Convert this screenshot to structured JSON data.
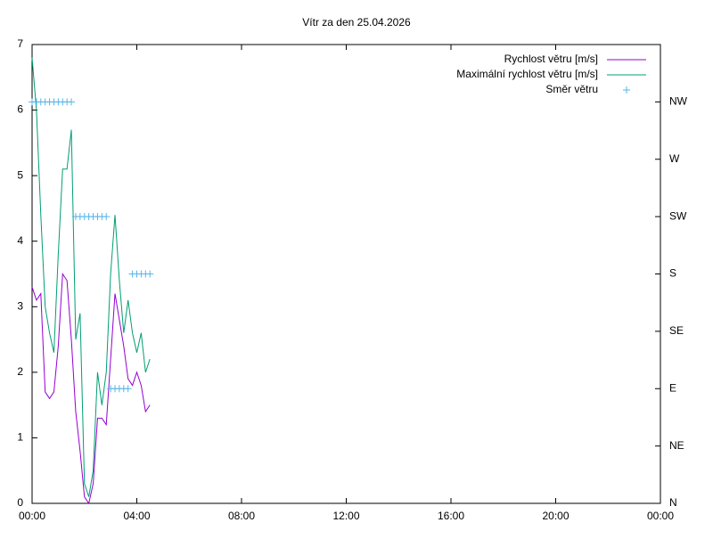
{
  "chart_data": {
    "type": "line",
    "title": "Vítr za den 25.04.2026",
    "x": [
      0,
      10,
      20,
      30,
      40,
      50,
      60,
      70,
      80,
      90,
      100,
      110,
      120,
      130,
      140,
      150,
      160,
      170,
      180,
      190,
      200,
      210,
      220,
      230,
      240,
      250,
      260,
      270
    ],
    "xlim": [
      0,
      1440
    ],
    "xticks": [
      {
        "value": 0,
        "label": "00:00"
      },
      {
        "value": 240,
        "label": "04:00"
      },
      {
        "value": 480,
        "label": "08:00"
      },
      {
        "value": 720,
        "label": "12:00"
      },
      {
        "value": 960,
        "label": "16:00"
      },
      {
        "value": 1200,
        "label": "20:00"
      },
      {
        "value": 1440,
        "label": "00:00"
      }
    ],
    "ylim": [
      0,
      7
    ],
    "yticks": [
      0,
      1,
      2,
      3,
      4,
      5,
      6,
      7
    ],
    "y2lim": [
      0,
      360
    ],
    "y2ticks": [
      {
        "value": 0,
        "label": "N"
      },
      {
        "value": 45,
        "label": "NE"
      },
      {
        "value": 90,
        "label": "E"
      },
      {
        "value": 135,
        "label": "SE"
      },
      {
        "value": 180,
        "label": "S"
      },
      {
        "value": 225,
        "label": "SW"
      },
      {
        "value": 270,
        "label": "W"
      },
      {
        "value": 315,
        "label": "NW"
      }
    ],
    "legend": "top right",
    "series": [
      {
        "name": "Rychlost větru [m/s]",
        "color": "#9400d3",
        "style": "line",
        "values": [
          3.3,
          3.1,
          3.2,
          1.7,
          1.6,
          1.7,
          2.4,
          3.5,
          3.4,
          2.5,
          1.4,
          0.8,
          0.1,
          0.0,
          0.3,
          1.3,
          1.3,
          1.2,
          2.2,
          3.2,
          2.8,
          2.4,
          1.9,
          1.8,
          2.0,
          1.8,
          1.4,
          1.5
        ]
      },
      {
        "name": "Maximální rychlost větru [m/s]",
        "color": "#009e73",
        "style": "line",
        "values": [
          6.8,
          6.0,
          4.4,
          3.0,
          2.6,
          2.3,
          3.8,
          5.1,
          5.1,
          5.7,
          2.5,
          2.9,
          0.3,
          0.1,
          0.5,
          2.0,
          1.5,
          2.0,
          3.5,
          4.4,
          3.4,
          2.6,
          3.1,
          2.6,
          2.3,
          2.6,
          2.0,
          2.2
        ]
      },
      {
        "name": "Směr větru",
        "color": "#56b4e9",
        "style": "points",
        "axis": "y2",
        "values": [
          315,
          315,
          315,
          315,
          315,
          315,
          315,
          315,
          315,
          315,
          225,
          225,
          225,
          225,
          225,
          225,
          225,
          225,
          90,
          90,
          90,
          90,
          90,
          180,
          180,
          180,
          180,
          180
        ]
      }
    ]
  }
}
